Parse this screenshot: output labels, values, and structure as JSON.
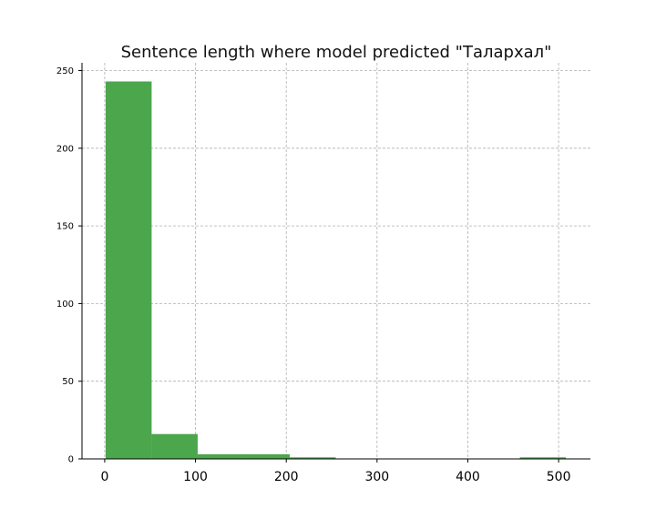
{
  "chart_data": {
    "type": "bar",
    "title": "Sentence length where model predicted \"Талархал\"",
    "xlabel": "",
    "ylabel": "",
    "xlim": [
      -25,
      535
    ],
    "ylim": [
      0,
      255
    ],
    "x_ticks": [
      0,
      100,
      200,
      300,
      400,
      500
    ],
    "y_ticks": [
      0,
      50,
      100,
      150,
      200,
      250
    ],
    "grid": true,
    "bar_color": "#4ca64c",
    "bins": [
      {
        "start": 1,
        "end": 51.7,
        "count": 243
      },
      {
        "start": 51.7,
        "end": 102.4,
        "count": 16
      },
      {
        "start": 102.4,
        "end": 153.1,
        "count": 3
      },
      {
        "start": 153.1,
        "end": 203.8,
        "count": 3
      },
      {
        "start": 203.8,
        "end": 254.5,
        "count": 1
      },
      {
        "start": 254.5,
        "end": 305.2,
        "count": 0
      },
      {
        "start": 305.2,
        "end": 355.9,
        "count": 0
      },
      {
        "start": 355.9,
        "end": 406.6,
        "count": 0
      },
      {
        "start": 406.6,
        "end": 457.3,
        "count": 0
      },
      {
        "start": 457.3,
        "end": 508,
        "count": 1
      }
    ]
  }
}
